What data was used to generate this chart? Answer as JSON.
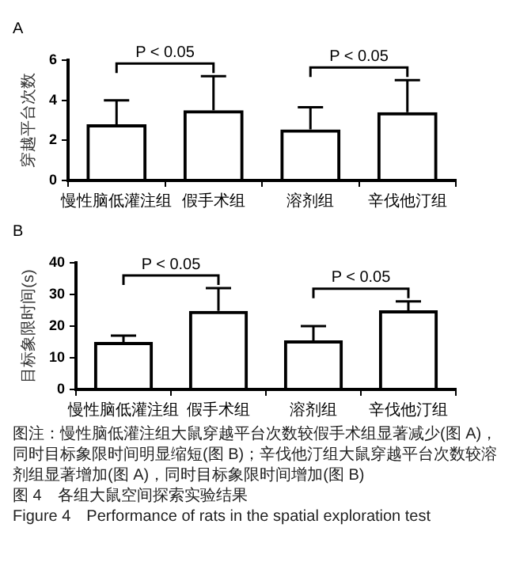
{
  "chart_data": [
    {
      "type": "bar",
      "title": "A",
      "ylabel": "穿越平台次数",
      "categories": [
        "慢性脑低灌注组",
        "假手术组",
        "溶剂组",
        "辛伐他汀组"
      ],
      "values": [
        2.8,
        3.5,
        2.55,
        3.4
      ],
      "color": "#000000",
      "errors": [
        [
          2.8,
          4.0
        ],
        [
          3.5,
          5.2
        ],
        [
          2.55,
          3.65
        ],
        [
          3.4,
          5.0
        ]
      ],
      "ylim": [
        0,
        6
      ],
      "yticks": [
        0,
        2,
        4,
        6
      ],
      "grid": false,
      "legend": false,
      "annotations": [
        "P < 0.05",
        "P < 0.05"
      ]
    },
    {
      "type": "bar",
      "title": "B",
      "ylabel": "目标象限时间(s)",
      "categories": [
        "慢性脑低灌注组",
        "假手术组",
        "溶剂组",
        "辛伐他汀组"
      ],
      "values": [
        15,
        24.8,
        15.5,
        25
      ],
      "color": "#000000",
      "errors": [
        [
          15,
          17
        ],
        [
          24.8,
          32
        ],
        [
          15.5,
          20
        ],
        [
          25,
          27.8
        ]
      ],
      "ylim": [
        0,
        40
      ],
      "yticks": [
        0,
        10,
        20,
        30,
        40
      ],
      "grid": false,
      "legend": false,
      "annotations": [
        "P < 0.05",
        "P < 0.05",
        "图注：慢性脑低灌注组大鼠穿越平台次数较假手术组显著减少(图 A)，同时目标象限时间明显缩短(图 B)；辛伐他汀组大鼠穿越平台次数较溶剂组显著增加(图 A)，同时目标象限时间增加(图 B)",
        "图 4　各组大鼠空间探索实验结果",
        "Figure 4　Performance of rats in the spatial exploration test"
      ]
    }
  ]
}
